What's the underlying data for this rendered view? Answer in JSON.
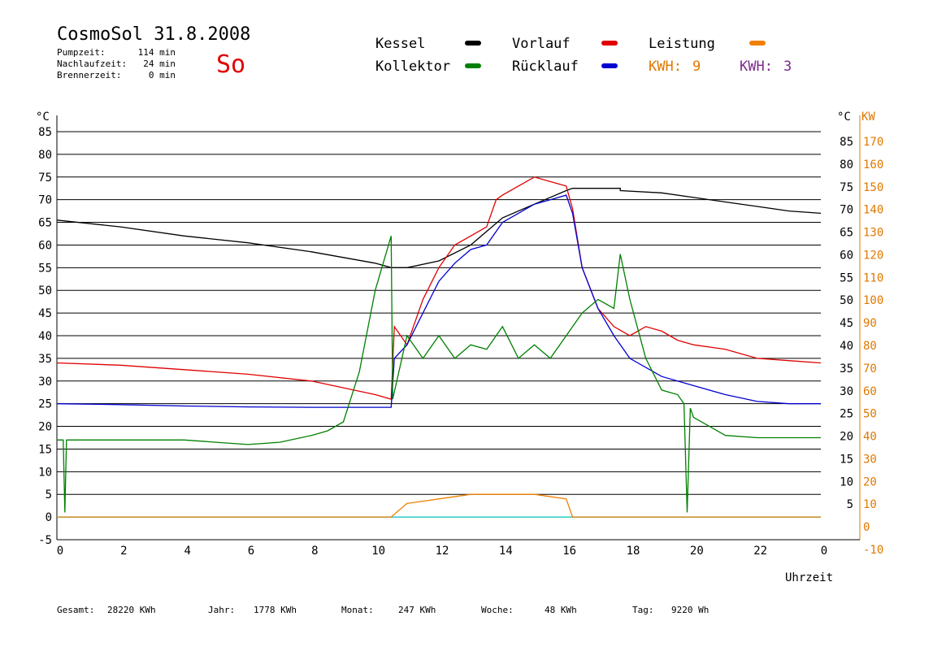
{
  "header": {
    "title": "CosmoSol 31.8.2008",
    "stats": [
      {
        "label": "Pumpzeit:",
        "value": "114 min"
      },
      {
        "label": "Nachlaufzeit:",
        "value": "24 min"
      },
      {
        "label": "Brennerzeit:",
        "value": "0 min"
      }
    ],
    "day": "So"
  },
  "legend": {
    "items": [
      {
        "label": "Kessel",
        "color": "#000000"
      },
      {
        "label": "Vorlauf",
        "color": "#e00000"
      },
      {
        "label": "Leistung",
        "color": "#f08000"
      },
      {
        "label": "Kollektor",
        "color": "#008000"
      },
      {
        "label": "Rücklauf",
        "color": "#0000d0"
      }
    ],
    "kwh_orange": {
      "label": "KWH:",
      "value": "9",
      "color": "#e07800"
    },
    "kwh_purple": {
      "label": "KWH:",
      "value": "3",
      "color": "#7a2a8a"
    }
  },
  "footer": [
    {
      "label": "Gesamt:",
      "value": "28220 KWh"
    },
    {
      "label": "Jahr:",
      "value": "1778 KWh"
    },
    {
      "label": "Monat:",
      "value": "247 KWh"
    },
    {
      "label": "Woche:",
      "value": "48 KWh"
    },
    {
      "label": "Tag:",
      "value": "9220 Wh"
    }
  ],
  "chart_data": {
    "type": "line",
    "xlabel": "Uhrzeit",
    "ylabel_left": "°C",
    "ylabel_right_unit": "°C",
    "ylabel_right_power": "KW",
    "xlim": [
      0,
      24
    ],
    "ylim": [
      -5,
      85
    ],
    "x_ticks": [
      "0",
      "2",
      "4",
      "6",
      "8",
      "10",
      "12",
      "14",
      "16",
      "18",
      "20",
      "22",
      "0"
    ],
    "y_ticks_left": [
      "85",
      "80",
      "75",
      "70",
      "65",
      "60",
      "55",
      "50",
      "45",
      "40",
      "35",
      "30",
      "25",
      "20",
      "15",
      "10",
      "5",
      "0",
      "-5"
    ],
    "y_ticks_right_temp": [
      "85",
      "80",
      "75",
      "70",
      "65",
      "60",
      "55",
      "50",
      "45",
      "40",
      "35",
      "30",
      "25",
      "20",
      "15",
      "10",
      "5"
    ],
    "y_ticks_right_power": [
      "170",
      "160",
      "150",
      "140",
      "130",
      "120",
      "110",
      "100",
      "90",
      "80",
      "70",
      "60",
      "50",
      "40",
      "30",
      "20",
      "10",
      "0",
      "-10"
    ],
    "grid": true,
    "series": [
      {
        "name": "Kessel",
        "color": "#000000",
        "x": [
          0,
          2,
          4,
          6,
          8,
          10,
          10.5,
          11,
          12,
          13,
          14,
          15,
          16,
          16.2,
          17.7,
          17.7,
          19,
          20,
          21,
          22,
          23,
          24
        ],
        "y": [
          65.5,
          64,
          62,
          60.5,
          58.5,
          56,
          55,
          55,
          56.5,
          60,
          66,
          69,
          72,
          72.5,
          72.5,
          72,
          71.5,
          70.5,
          69.5,
          68.5,
          67.5,
          67
        ]
      },
      {
        "name": "Vorlauf",
        "color": "#e00000",
        "x": [
          0,
          2,
          4,
          6,
          8,
          9,
          10,
          10.5,
          10.6,
          11,
          11.5,
          12,
          12.5,
          13,
          13.5,
          13.8,
          14,
          14.5,
          15,
          15.5,
          16,
          16.2,
          16.5,
          17,
          17.5,
          18,
          18.5,
          19,
          19.5,
          20,
          21,
          22,
          23,
          24
        ],
        "y": [
          34,
          33.5,
          32.5,
          31.5,
          30,
          28.5,
          27,
          26,
          42,
          38,
          48,
          55,
          60,
          62,
          64,
          70,
          71,
          73,
          75,
          74,
          73,
          68,
          55,
          46,
          42,
          40,
          42,
          41,
          39,
          38,
          37,
          35,
          34.5,
          34
        ]
      },
      {
        "name": "Rücklauf",
        "color": "#0000d0",
        "x": [
          0,
          2,
          4,
          6,
          8,
          10,
          10.5,
          10.6,
          11,
          11.5,
          12,
          12.5,
          13,
          13.5,
          14,
          14.5,
          15,
          15.5,
          16,
          16.2,
          16.5,
          17,
          17.5,
          18,
          19,
          20,
          21,
          22,
          23,
          24
        ],
        "y": [
          25,
          24.8,
          24.5,
          24.3,
          24.2,
          24.2,
          24.2,
          35,
          38,
          45,
          52,
          56,
          59,
          60,
          65,
          67,
          69,
          70,
          71,
          67,
          55,
          46,
          40,
          35,
          31,
          29,
          27,
          25.5,
          25,
          25
        ]
      },
      {
        "name": "Kollektor",
        "color": "#008000",
        "x": [
          0,
          0.2,
          0.25,
          0.3,
          1,
          2,
          3,
          4,
          5,
          6,
          7,
          8,
          8.5,
          9,
          9.5,
          10,
          10.5,
          10.55,
          11,
          11.5,
          12,
          12.5,
          13,
          13.5,
          14,
          14.5,
          15,
          15.5,
          16,
          16.5,
          17,
          17.5,
          17.7,
          18,
          18.5,
          19,
          19.5,
          19.7,
          19.8,
          19.9,
          20,
          21,
          22,
          23,
          24
        ],
        "y": [
          17,
          17,
          1,
          17,
          17,
          17,
          17,
          17,
          16.5,
          16,
          16.5,
          18,
          19,
          21,
          32,
          50,
          62,
          26,
          40,
          35,
          40,
          35,
          38,
          37,
          42,
          35,
          38,
          35,
          40,
          45,
          48,
          46,
          58,
          48,
          35,
          28,
          27,
          25,
          1,
          24,
          22,
          18,
          17.5,
          17.5,
          17.5
        ]
      },
      {
        "name": "Leistung",
        "color": "#f08000",
        "x": [
          0,
          10.5,
          11,
          12,
          13,
          14,
          15,
          16,
          16.2,
          24
        ],
        "y": [
          0,
          0,
          3,
          4,
          5,
          5,
          5,
          4,
          0,
          0
        ]
      }
    ]
  }
}
